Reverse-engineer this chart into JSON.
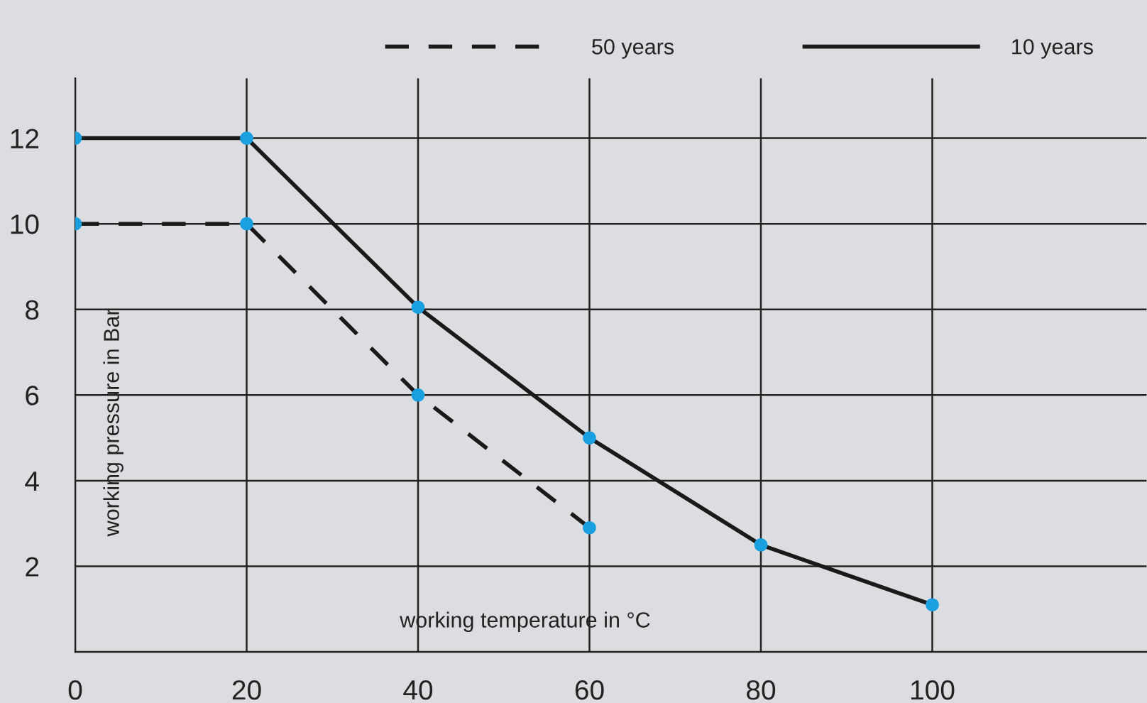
{
  "chart_data": {
    "type": "line",
    "xlabel": "working temperature in °C",
    "ylabel": "working pressure in Bar",
    "xlim": [
      0,
      125
    ],
    "ylim": [
      0,
      13.4
    ],
    "xticks": [
      0,
      20,
      40,
      60,
      80,
      100
    ],
    "yticks": [
      {
        "value": 0,
        "label": null
      },
      2,
      4,
      6,
      8,
      10,
      12
    ],
    "grid": true,
    "legend": "top",
    "marker": "circle",
    "series": [
      {
        "name": "50 years",
        "color": "#1a1a1a",
        "colors": [
          "#1aa0e0",
          "#1aa0e0",
          "#1aa0e0",
          "#1aa0e0"
        ],
        "line_style": "dashed",
        "x": [
          0,
          20,
          40,
          60
        ],
        "values": [
          10,
          10,
          6,
          2.9
        ]
      },
      {
        "name": "10 years",
        "color": "#1a1a1a",
        "colors": [
          "#1aa0e0",
          "#1aa0e0",
          "#1aa0e0",
          "#1aa0e0",
          "#1aa0e0",
          "#1aa0e0"
        ],
        "line_style": "solid",
        "x": [
          0,
          20,
          40,
          60,
          80,
          100
        ],
        "values": [
          12,
          12,
          8.05,
          5,
          2.5,
          1.1
        ]
      }
    ]
  }
}
